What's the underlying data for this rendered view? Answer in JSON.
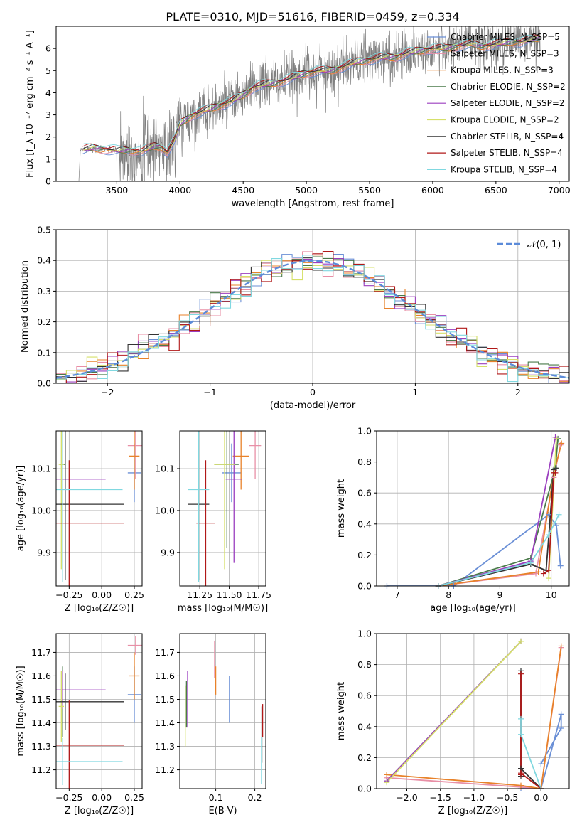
{
  "title": "PLATE=0310, MJD=51616, FIBERID=0459, z=0.334",
  "chart_data": [
    {
      "id": "spectrum",
      "type": "line",
      "xlabel": "wavelength [Angstrom, rest frame]",
      "ylabel": "Flux [f_λ 10⁻¹⁷ erg cm⁻² s⁻¹ A⁻¹]",
      "xlim": [
        3020,
        7080
      ],
      "ylim": [
        0,
        7
      ],
      "xticks": [
        3500,
        4000,
        4500,
        5000,
        5500,
        6000,
        6500,
        7000
      ],
      "yticks": [
        0,
        1,
        2,
        3,
        4,
        5,
        6
      ],
      "grid": false,
      "legend": "top-right",
      "data_color": "#808080",
      "data_x_range": [
        3200,
        6850
      ],
      "continuum": {
        "x": [
          3200,
          3230,
          3300,
          3400,
          3500,
          3600,
          3700,
          3800,
          3850,
          3900,
          3960,
          4000,
          4100,
          4200,
          4300,
          4400,
          4500,
          4600,
          4700,
          4800,
          4900,
          5000,
          5100,
          5200,
          5300,
          5400,
          5500,
          5600,
          5700,
          5800,
          5900,
          6000,
          6100,
          6200,
          6300,
          6400,
          6500,
          6600,
          6700,
          6850
        ],
        "y": [
          1.3,
          1.45,
          1.5,
          1.45,
          1.4,
          1.4,
          1.35,
          1.6,
          1.55,
          1.3,
          1.9,
          2.6,
          3.0,
          3.2,
          3.4,
          3.6,
          3.9,
          4.3,
          4.4,
          4.5,
          4.7,
          4.9,
          5.0,
          5.0,
          5.2,
          5.4,
          5.5,
          5.6,
          5.6,
          5.8,
          5.9,
          6.0,
          6.0,
          6.1,
          6.2,
          6.1,
          6.2,
          6.3,
          6.3,
          6.5
        ]
      },
      "series": [
        {
          "name": "Chabrier MILES, N_SSP=5",
          "color": "#6a8fd6"
        },
        {
          "name": "Salpeter MILES, N_SSP=3",
          "color": "#e88fa6"
        },
        {
          "name": "Kroupa MILES, N_SSP=3",
          "color": "#e8822a"
        },
        {
          "name": "Chabrier ELODIE, N_SSP=2",
          "color": "#4a7a4a"
        },
        {
          "name": "Salpeter ELODIE, N_SSP=2",
          "color": "#9b3fbf"
        },
        {
          "name": "Kroupa ELODIE, N_SSP=2",
          "color": "#d6e06a"
        },
        {
          "name": "Chabrier STELIB, N_SSP=4",
          "color": "#333333"
        },
        {
          "name": "Salpeter STELIB, N_SSP=4",
          "color": "#b01818"
        },
        {
          "name": "Kroupa STELIB, N_SSP=4",
          "color": "#80d8e0"
        }
      ]
    },
    {
      "id": "residuals",
      "type": "histogram",
      "xlabel": "(data-model)/error",
      "ylabel": "Normed distribution",
      "xlim": [
        -2.5,
        2.5
      ],
      "ylim": [
        0,
        0.5
      ],
      "xticks": [
        -2,
        -1,
        0,
        1,
        2
      ],
      "yticks": [
        0.0,
        0.1,
        0.2,
        0.3,
        0.4,
        0.5
      ],
      "grid": true,
      "legend": "top-right",
      "reference_curve": {
        "name": "𝒩(0, 1)",
        "color": "#5b8bd9",
        "style": "dashed"
      }
    },
    {
      "id": "age_vs_Z",
      "type": "scatter",
      "xlabel": "Z [log₁₀(Z/Z☉)]",
      "ylabel": "age  [log₁₀(age/yr)]",
      "xlim": [
        -0.35,
        0.31
      ],
      "ylim": [
        9.82,
        10.19
      ],
      "xticks": [
        -0.25,
        0.0,
        0.25
      ],
      "xticklabels": [
        "−0.25",
        "0.00",
        "0.25"
      ],
      "yticks": [
        9.9,
        10.0,
        10.1
      ],
      "grid": true,
      "points": [
        {
          "series": 0,
          "x": 0.25,
          "y": 10.09,
          "xerr": 0.05,
          "yerr": 0.07
        },
        {
          "series": 1,
          "x": 0.26,
          "y": 10.155,
          "xerr": 0.06,
          "yerr": 0.08
        },
        {
          "series": 2,
          "x": 0.25,
          "y": 10.13,
          "xerr": 0.04,
          "yerr": 0.08
        },
        {
          "series": 3,
          "x": -0.3,
          "y": 10.11,
          "xerr": 0.02,
          "yerr": 0.2
        },
        {
          "series": 4,
          "x": -0.3,
          "y": 10.075,
          "xerr": 0.33,
          "yerr": 0.2
        },
        {
          "series": 5,
          "x": -0.31,
          "y": 10.11,
          "xerr": 0.02,
          "yerr": 0.25
        },
        {
          "series": 6,
          "x": -0.28,
          "y": 10.015,
          "xerr": 0.45,
          "yerr": 0.18
        },
        {
          "series": 7,
          "x": -0.25,
          "y": 9.97,
          "xerr": 0.42,
          "yerr": 0.15
        },
        {
          "series": 8,
          "x": -0.3,
          "y": 10.05,
          "xerr": 0.46,
          "yerr": 0.22
        }
      ]
    },
    {
      "id": "age_vs_mass",
      "type": "scatter",
      "xlabel": "mass [log₁₀(M/M☉)]",
      "ylabel": "",
      "xlim": [
        11.08,
        11.81
      ],
      "ylim": [
        9.82,
        10.19
      ],
      "xticks": [
        11.25,
        11.5,
        11.75
      ],
      "xticklabels": [
        "11.25",
        "11.50",
        "11.75"
      ],
      "yticks": [
        9.9,
        10.0,
        10.1
      ],
      "grid": true,
      "points": [
        {
          "series": 0,
          "x": 11.52,
          "y": 10.09,
          "xerr": 0.08,
          "yerr": 0.07
        },
        {
          "series": 1,
          "x": 11.72,
          "y": 10.155,
          "xerr": 0.05,
          "yerr": 0.08
        },
        {
          "series": 2,
          "x": 11.6,
          "y": 10.13,
          "xerr": 0.07,
          "yerr": 0.08
        },
        {
          "series": 3,
          "x": 11.48,
          "y": 10.11,
          "xerr": 0.1,
          "yerr": 0.2
        },
        {
          "series": 4,
          "x": 11.54,
          "y": 10.075,
          "xerr": 0.07,
          "yerr": 0.2
        },
        {
          "series": 5,
          "x": 11.46,
          "y": 10.11,
          "xerr": 0.09,
          "yerr": 0.25
        },
        {
          "series": 6,
          "x": 11.24,
          "y": 10.015,
          "xerr": 0.09,
          "yerr": 0.18
        },
        {
          "series": 7,
          "x": 11.3,
          "y": 9.97,
          "xerr": 0.08,
          "yerr": 0.15
        },
        {
          "series": 8,
          "x": 11.24,
          "y": 10.05,
          "xerr": 0.09,
          "yerr": 0.22
        }
      ]
    },
    {
      "id": "weight_vs_age",
      "type": "line",
      "xlabel": "age  [log₁₀(age/yr)]",
      "ylabel": "mass weight",
      "xlim": [
        6.6,
        10.35
      ],
      "ylim": [
        0,
        1.0
      ],
      "xticks": [
        7,
        8,
        9,
        10
      ],
      "yticks": [
        0.0,
        0.2,
        0.4,
        0.6,
        0.8,
        1.0
      ],
      "grid": true,
      "series": [
        {
          "series": 0,
          "x": [
            6.8,
            8.1,
            9.95,
            10.1,
            10.18
          ],
          "y": [
            0.0,
            0.0,
            0.46,
            0.39,
            0.13
          ]
        },
        {
          "series": 1,
          "x": [
            7.8,
            9.7,
            10.05,
            10.18
          ],
          "y": [
            0.0,
            0.08,
            0.7,
            0.91
          ]
        },
        {
          "series": 2,
          "x": [
            7.8,
            9.75,
            10.05,
            10.2
          ],
          "y": [
            0.0,
            0.09,
            0.73,
            0.92
          ]
        },
        {
          "series": 3,
          "x": [
            7.8,
            9.6,
            10.08,
            10.13
          ],
          "y": [
            0.0,
            0.18,
            0.76,
            0.95
          ]
        },
        {
          "series": 4,
          "x": [
            7.8,
            9.6,
            10.08
          ],
          "y": [
            0.0,
            0.16,
            0.96
          ]
        },
        {
          "series": 5,
          "x": [
            9.95,
            10.1
          ],
          "y": [
            0.05,
            0.95
          ]
        },
        {
          "series": 6,
          "x": [
            7.8,
            9.6,
            9.9,
            10.05,
            10.1
          ],
          "y": [
            0.0,
            0.14,
            0.1,
            0.75,
            0.76
          ]
        },
        {
          "series": 7,
          "x": [
            9.85,
            9.95,
            10.05,
            10.08
          ],
          "y": [
            0.08,
            0.1,
            0.73,
            0.73
          ]
        },
        {
          "series": 8,
          "x": [
            7.8,
            9.6,
            9.95,
            10.15
          ],
          "y": [
            0.0,
            0.15,
            0.33,
            0.46
          ]
        }
      ]
    },
    {
      "id": "mass_vs_Z",
      "type": "scatter",
      "xlabel": "Z [log₁₀(Z/Z☉)]",
      "ylabel": "mass [log₁₀(M/M☉)]",
      "xlim": [
        -0.35,
        0.31
      ],
      "ylim": [
        11.12,
        11.78
      ],
      "xticks": [
        -0.25,
        0.0,
        0.25
      ],
      "xticklabels": [
        "−0.25",
        "0.00",
        "0.25"
      ],
      "yticks": [
        11.2,
        11.3,
        11.4,
        11.5,
        11.6,
        11.7
      ],
      "grid": true,
      "points": [
        {
          "series": 0,
          "x": 0.25,
          "y": 11.52,
          "xerr": 0.05,
          "yerr": 0.12
        },
        {
          "series": 1,
          "x": 0.26,
          "y": 11.73,
          "xerr": 0.06,
          "yerr": 0.04
        },
        {
          "series": 2,
          "x": 0.25,
          "y": 11.6,
          "xerr": 0.04,
          "yerr": 0.1
        },
        {
          "series": 3,
          "x": -0.3,
          "y": 11.49,
          "xerr": 0.02,
          "yerr": 0.15
        },
        {
          "series": 4,
          "x": -0.3,
          "y": 11.54,
          "xerr": 0.33,
          "yerr": 0.08
        },
        {
          "series": 5,
          "x": -0.31,
          "y": 11.47,
          "xerr": 0.02,
          "yerr": 0.15
        },
        {
          "series": 6,
          "x": -0.28,
          "y": 11.49,
          "xerr": 0.45,
          "yerr": 0.12
        },
        {
          "series": 7,
          "x": -0.25,
          "y": 11.305,
          "xerr": 0.42,
          "yerr": 0.19
        },
        {
          "series": 8,
          "x": -0.3,
          "y": 11.235,
          "xerr": 0.46,
          "yerr": 0.1
        }
      ]
    },
    {
      "id": "mass_vs_ebv",
      "type": "scatter",
      "xlabel": "E(B-V)",
      "ylabel": "",
      "xlim": [
        0.008,
        0.228
      ],
      "ylim": [
        11.12,
        11.78
      ],
      "xticks": [
        0.1,
        0.2
      ],
      "xticklabels": [
        "0.1",
        "0.2"
      ],
      "yticks": [
        11.2,
        11.3,
        11.4,
        11.5,
        11.6,
        11.7
      ],
      "grid": true,
      "points": [
        {
          "series": 0,
          "x": 0.135,
          "y": 11.5,
          "xerr": 0.0,
          "yerr": 0.1
        },
        {
          "series": 1,
          "x": 0.097,
          "y": 11.67,
          "xerr": 0.0,
          "yerr": 0.08
        },
        {
          "series": 2,
          "x": 0.1,
          "y": 11.58,
          "xerr": 0.0,
          "yerr": 0.06
        },
        {
          "series": 3,
          "x": 0.025,
          "y": 11.48,
          "xerr": 0.0,
          "yerr": 0.1
        },
        {
          "series": 4,
          "x": 0.028,
          "y": 11.5,
          "xerr": 0.0,
          "yerr": 0.12
        },
        {
          "series": 5,
          "x": 0.022,
          "y": 11.43,
          "xerr": 0.0,
          "yerr": 0.13
        },
        {
          "series": 6,
          "x": 0.218,
          "y": 11.35,
          "xerr": 0.0,
          "yerr": 0.12
        },
        {
          "series": 7,
          "x": 0.22,
          "y": 11.41,
          "xerr": 0.0,
          "yerr": 0.07
        },
        {
          "series": 8,
          "x": 0.217,
          "y": 11.24,
          "xerr": 0.0,
          "yerr": 0.1
        }
      ]
    },
    {
      "id": "weight_vs_Z",
      "type": "line",
      "xlabel": "Z [log₁₀(Z/Z☉)]",
      "ylabel": "mass weight",
      "xlim": [
        -2.45,
        0.42
      ],
      "ylim": [
        0,
        1.0
      ],
      "xticks": [
        -2.0,
        -1.5,
        -1.0,
        -0.5,
        0.0
      ],
      "xticklabels": [
        "−2.0",
        "−1.5",
        "−1.0",
        "−0.5",
        "0.0"
      ],
      "yticks": [
        0.0,
        0.2,
        0.4,
        0.6,
        0.8,
        1.0
      ],
      "grid": true,
      "series": [
        {
          "series": 0,
          "x": [
            -0.3,
            0.0,
            0.3,
            0.3,
            0.0
          ],
          "y": [
            0.0,
            0.0,
            0.48,
            0.39,
            0.16
          ]
        },
        {
          "series": 1,
          "x": [
            -2.3,
            -0.3,
            0.0,
            0.3
          ],
          "y": [
            0.07,
            0.01,
            0.0,
            0.91
          ]
        },
        {
          "series": 2,
          "x": [
            -2.3,
            -0.3,
            0.0,
            0.3
          ],
          "y": [
            0.09,
            0.02,
            0.0,
            0.92
          ]
        },
        {
          "series": 3,
          "x": [
            -2.3,
            -0.3
          ],
          "y": [
            0.05,
            0.95
          ]
        },
        {
          "series": 4,
          "x": [
            -2.3,
            -0.3
          ],
          "y": [
            0.05,
            0.95
          ]
        },
        {
          "series": 5,
          "x": [
            -2.3,
            -0.3
          ],
          "y": [
            0.04,
            0.95
          ]
        },
        {
          "series": 6,
          "x": [
            -0.3,
            -0.3,
            -0.3,
            0.0
          ],
          "y": [
            0.08,
            0.76,
            0.13,
            0.0
          ]
        },
        {
          "series": 7,
          "x": [
            -0.3,
            -0.3,
            -0.3,
            0.0
          ],
          "y": [
            0.09,
            0.74,
            0.1,
            0.0
          ]
        },
        {
          "series": 8,
          "x": [
            -0.3,
            -0.3,
            0.0
          ],
          "y": [
            0.45,
            0.35,
            0.0
          ]
        }
      ]
    }
  ]
}
